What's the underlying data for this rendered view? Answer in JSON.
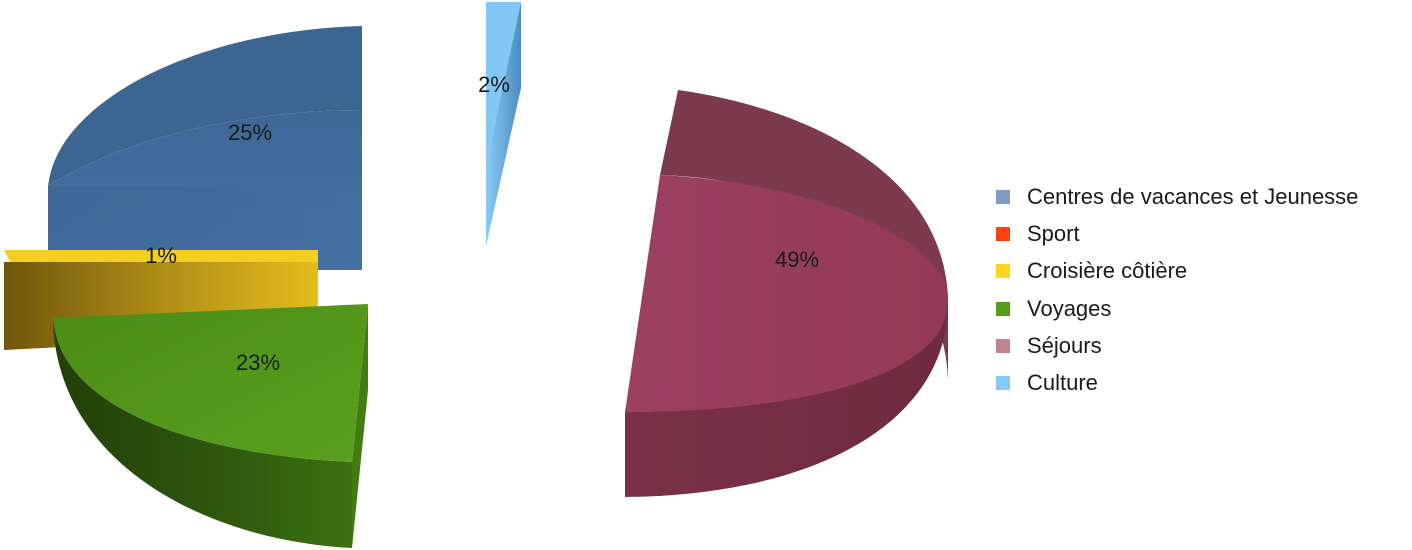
{
  "chart_data": {
    "type": "pie",
    "style": "3d-exploded",
    "legend_position": "right",
    "categories": [
      "Centres de vacances et Jeunesse",
      "Sport",
      "Croisière côtière",
      "Voyages",
      "Séjours",
      "Culture"
    ],
    "values": [
      25,
      0,
      1,
      23,
      49,
      2
    ],
    "data_labels": [
      "25%",
      "",
      "1%",
      "23%",
      "49%",
      "2%"
    ],
    "colors": [
      "#4472a8",
      "#ff420e",
      "#e0b81a",
      "#579d1c",
      "#9b3e5c",
      "#7fc3f5"
    ],
    "legend_colors": [
      "#7f9ebf",
      "#ff420e",
      "#ffd320",
      "#579d1c",
      "#c2828f",
      "#83caff"
    ]
  }
}
